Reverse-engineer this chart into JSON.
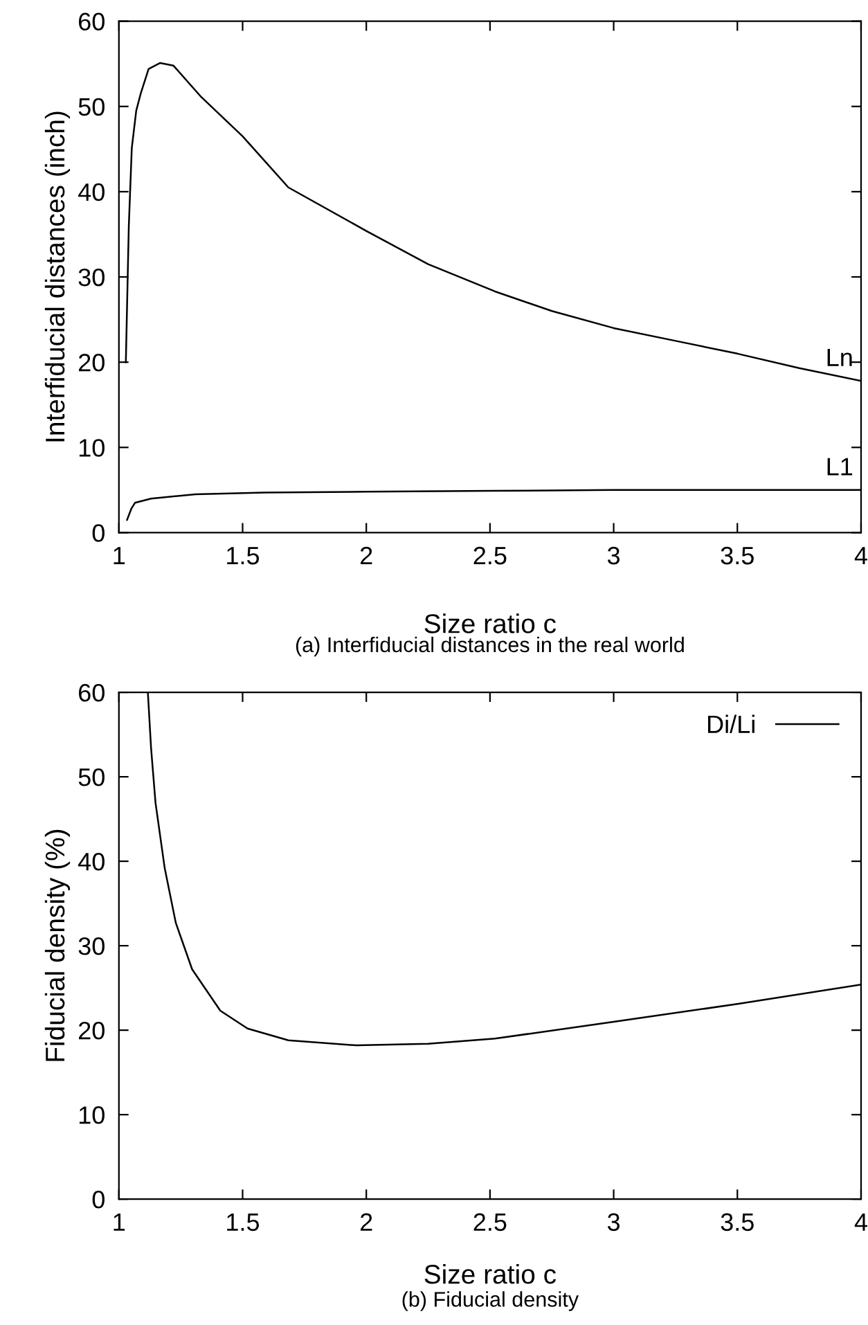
{
  "chart_data": [
    {
      "type": "line",
      "xlabel": "Size ratio c",
      "ylabel": "Interfiducial distances (inch)",
      "annotations": [
        "(a) Interfiducial distances in the real world"
      ],
      "xlim": [
        1,
        4
      ],
      "ylim": [
        0,
        60
      ],
      "xticks": [
        1,
        1.5,
        2,
        2.5,
        3,
        3.5,
        4
      ],
      "yticks": [
        0,
        10,
        20,
        30,
        40,
        50,
        60
      ],
      "grid": false,
      "legend": "right",
      "marker": "none",
      "line_style": "solid",
      "series": [
        {
          "name": "Ln",
          "color": "#000000",
          "x": [
            1.028,
            1.04,
            1.052,
            1.07,
            1.089,
            1.12,
            1.167,
            1.22,
            1.333,
            1.5,
            1.685,
            2,
            2.25,
            2.52,
            2.75,
            3,
            3.25,
            3.5,
            3.75,
            4
          ],
          "values": [
            20,
            36,
            45.1,
            49.5,
            51.6,
            54.4,
            55.1,
            54.8,
            51.1,
            46.5,
            40.5,
            35.4,
            31.5,
            28.3,
            26,
            24,
            22.5,
            21,
            19.3,
            17.8
          ]
        },
        {
          "name": "L1",
          "color": "#000000",
          "x": [
            1.033,
            1.05,
            1.065,
            1.13,
            1.31,
            1.59,
            2,
            2.5,
            3,
            3.5,
            4
          ],
          "values": [
            1.5,
            2.8,
            3.5,
            4.0,
            4.5,
            4.7,
            4.8,
            4.9,
            5,
            5,
            5
          ]
        }
      ]
    },
    {
      "type": "line",
      "xlabel": "Size ratio c",
      "ylabel": "Fiducial density (%)",
      "annotations": [
        "(b) Fiducial density"
      ],
      "xlim": [
        1,
        4
      ],
      "ylim": [
        0,
        60
      ],
      "xticks": [
        1,
        1.5,
        2,
        2.5,
        3,
        3.5,
        4
      ],
      "yticks": [
        0,
        10,
        20,
        30,
        40,
        50,
        60
      ],
      "grid": false,
      "legend": "top right",
      "marker": "none",
      "line_style": "solid",
      "series": [
        {
          "name": "Di/Li",
          "color": "#000000",
          "x": [
            1.117,
            1.13,
            1.148,
            1.185,
            1.23,
            1.296,
            1.41,
            1.52,
            1.685,
            1.96,
            2.25,
            2.52,
            3,
            3.5,
            4
          ],
          "values": [
            60,
            53.4,
            46.9,
            39.2,
            32.7,
            27.2,
            22.3,
            20.2,
            18.8,
            18.2,
            18.4,
            19,
            21,
            23.1,
            25.4
          ]
        }
      ]
    }
  ]
}
